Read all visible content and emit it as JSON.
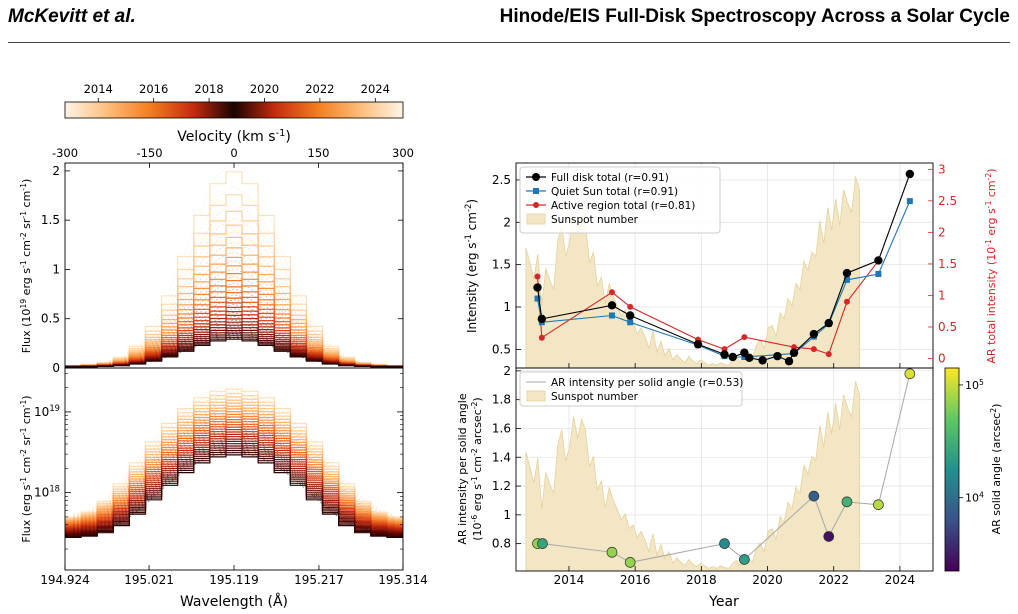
{
  "header": {
    "authors": "McKevitt et al.",
    "title": "Hinode/EIS Full-Disk Spectroscopy Across a Solar Cycle"
  },
  "colors": {
    "full_disk": "#000000",
    "quiet_sun": "#1f77b4",
    "active_region": "#d62728",
    "sunspot_fill": "#f2e6c4",
    "sunspot_line": "#e6d29a",
    "ar_axis": "#d62728"
  },
  "colorbar": {
    "ticks": [
      "2014",
      "2016",
      "2018",
      "2020",
      "2022",
      "2024"
    ],
    "tick_values": [
      2014,
      2016,
      2018,
      2020,
      2022,
      2024
    ],
    "range": [
      2012.8,
      2025.0
    ]
  },
  "chart_data": [
    {
      "type": "line",
      "panel": "spectra-linear",
      "ylabel": "Flux (10$^{19}$ erg s$^{-1}$ cm$^{-2}$ sr$^{-1}$ cm$^{-1}$)",
      "top_axis_label": "Velocity (km s$^{-1}$)",
      "top_ticks": [
        "-300",
        "-150",
        "0",
        "150",
        "300"
      ],
      "top_tick_values": [
        -300,
        -150,
        0,
        150,
        300
      ],
      "yticks": [
        "0",
        "0.5",
        "1",
        "1.5",
        "2"
      ],
      "ytick_values": [
        0,
        0.5,
        1,
        1.5,
        2
      ],
      "ylim": [
        0,
        2.08
      ],
      "xlim": [
        194.924,
        195.314
      ],
      "peak_min": 0.28,
      "peak_max": 1.97,
      "bins": 21
    },
    {
      "type": "line",
      "panel": "spectra-log",
      "xlabel": "Wavelength (Å)",
      "xticks": [
        "194.924",
        "195.021",
        "195.119",
        "195.217",
        "195.314"
      ],
      "xtick_values": [
        194.924,
        195.021,
        195.119,
        195.217,
        195.314
      ],
      "ylabel": "Flux (erg s$^{-1}$ cm$^{-2}$ sr$^{-1}$ cm$^{-1}$)",
      "yticks": [
        "10$^{19}$",
        "10$^{18}$"
      ],
      "ytick_values": [
        1e+19,
        1e+18
      ],
      "ylim": [
        1.1e+17,
        3.5e+19
      ],
      "xlim": [
        194.924,
        195.314
      ],
      "log_y": true,
      "bins": 21
    },
    {
      "type": "line",
      "panel": "intensity-vs-time",
      "ylabel": "Intensity (erg s$^{-1}$ cm$^{-2}$)",
      "ylabel_right": "AR total intensity (10$^{-1}$ erg s$^{-1}$ cm$^{-2}$)",
      "yticks": [
        "0.5",
        "1",
        "1.5",
        "2",
        "2.5"
      ],
      "ytick_values": [
        0.5,
        1,
        1.5,
        2,
        2.5
      ],
      "yticks_right": [
        "0",
        "0.5",
        "1",
        "1.5",
        "2",
        "2.5",
        "3"
      ],
      "ytick_values_right": [
        0,
        0.5,
        1,
        1.5,
        2,
        2.5,
        3
      ],
      "ylim": [
        0.28,
        2.7
      ],
      "ylim_right": [
        -0.15,
        3.1
      ],
      "xlim": [
        2012.4,
        2025.0
      ],
      "grid": true,
      "legend_location": "top-left",
      "series": [
        {
          "name": "Full disk total (r=0.91)",
          "x": [
            2013.05,
            2013.18,
            2015.3,
            2015.85,
            2017.9,
            2018.7,
            2018.95,
            2019.3,
            2019.45,
            2019.85,
            2020.3,
            2020.65,
            2020.8,
            2021.4,
            2021.85,
            2022.4,
            2023.35,
            2024.3
          ],
          "values": [
            1.23,
            0.86,
            1.02,
            0.9,
            0.56,
            0.44,
            0.41,
            0.46,
            0.4,
            0.37,
            0.42,
            0.36,
            0.46,
            0.68,
            0.81,
            1.4,
            1.55,
            2.57
          ]
        },
        {
          "name": "Quiet Sun total (r=0.91)",
          "x": [
            2013.05,
            2013.18,
            2015.3,
            2015.85,
            2017.9,
            2018.7,
            2018.95,
            2019.3,
            2020.8,
            2021.4,
            2021.85,
            2022.4,
            2023.35,
            2024.3
          ],
          "values": [
            1.1,
            0.82,
            0.9,
            0.82,
            0.55,
            0.42,
            0.41,
            0.41,
            0.45,
            0.65,
            0.8,
            1.32,
            1.39,
            2.25
          ]
        },
        {
          "name": "Active region total (r=0.81)",
          "axis": "right",
          "x": [
            2013.05,
            2013.18,
            2015.3,
            2015.85,
            2017.9,
            2018.7,
            2019.3,
            2020.8,
            2021.4,
            2021.85,
            2022.4,
            2023.35
          ],
          "values": [
            1.3,
            0.33,
            1.05,
            0.82,
            0.3,
            0.15,
            0.34,
            0.18,
            0.15,
            0.07,
            0.9,
            1.55
          ]
        }
      ],
      "sunspot_name": "Sunspot number"
    },
    {
      "type": "scatter",
      "panel": "ar-per-solid-angle",
      "xlabel": "Year",
      "xticks": [
        "2014",
        "2016",
        "2018",
        "2020",
        "2022",
        "2024"
      ],
      "xtick_values": [
        2014,
        2016,
        2018,
        2020,
        2022,
        2024
      ],
      "ylabel": "AR intensity per solid angle",
      "ylabel_2": "(10$^{-6}$ erg s$^{-1}$ cm$^{-2}$ arcsec$^{-2}$)",
      "yticks": [
        "0.8",
        "1",
        "1.2",
        "1.4",
        "1.6",
        "1.8",
        "2"
      ],
      "ytick_values": [
        0.8,
        1,
        1.2,
        1.4,
        1.6,
        1.8,
        2
      ],
      "ylim": [
        0.61,
        2.02
      ],
      "xlim": [
        2012.4,
        2025.0
      ],
      "grid": true,
      "legend_location": "top-left",
      "series": [
        {
          "name": "AR intensity per solid angle (r=0.53)",
          "x": [
            2013.05,
            2013.2,
            2015.3,
            2015.85,
            2018.7,
            2019.3,
            2021.4,
            2021.85,
            2022.4,
            2023.35,
            2024.3
          ],
          "values": [
            0.8,
            0.8,
            0.74,
            0.67,
            0.8,
            0.69,
            1.13,
            0.85,
            1.09,
            1.07,
            1.98
          ],
          "solid_angle_log10": [
            4.85,
            4.4,
            4.85,
            4.85,
            4.2,
            4.35,
            3.9,
            3.45,
            4.5,
            4.95,
            5.05
          ]
        }
      ],
      "sunspot_name": "Sunspot number",
      "colorbar_label": "AR solid angle (arcsec$^{2}$)",
      "colorbar_ticks": [
        "10$^{5}$",
        "10$^{4}$"
      ],
      "colorbar_tick_values": [
        5,
        4
      ],
      "colorbar_range": [
        3.35,
        5.15
      ]
    }
  ],
  "sunspot": {
    "x_start": 2012.7,
    "x_step": 0.12,
    "values": [
      135,
      118,
      100,
      128,
      70,
      112,
      98,
      88,
      142,
      160,
      125,
      140,
      175,
      150,
      172,
      160,
      118,
      130,
      92,
      102,
      72,
      95,
      80,
      70,
      58,
      65,
      48,
      52,
      38,
      45,
      35,
      22,
      42,
      18,
      30,
      14,
      22,
      9,
      15,
      10,
      6,
      13,
      8,
      5,
      9,
      6,
      3,
      5,
      3,
      6,
      4,
      3,
      8,
      12,
      6,
      18,
      14,
      10,
      25,
      32,
      22,
      45,
      48,
      35,
      62,
      55,
      78,
      70,
      95,
      88,
      120,
      110,
      130,
      125,
      165,
      140,
      180,
      155,
      190,
      160,
      200,
      185,
      175,
      215,
      200
    ]
  }
}
